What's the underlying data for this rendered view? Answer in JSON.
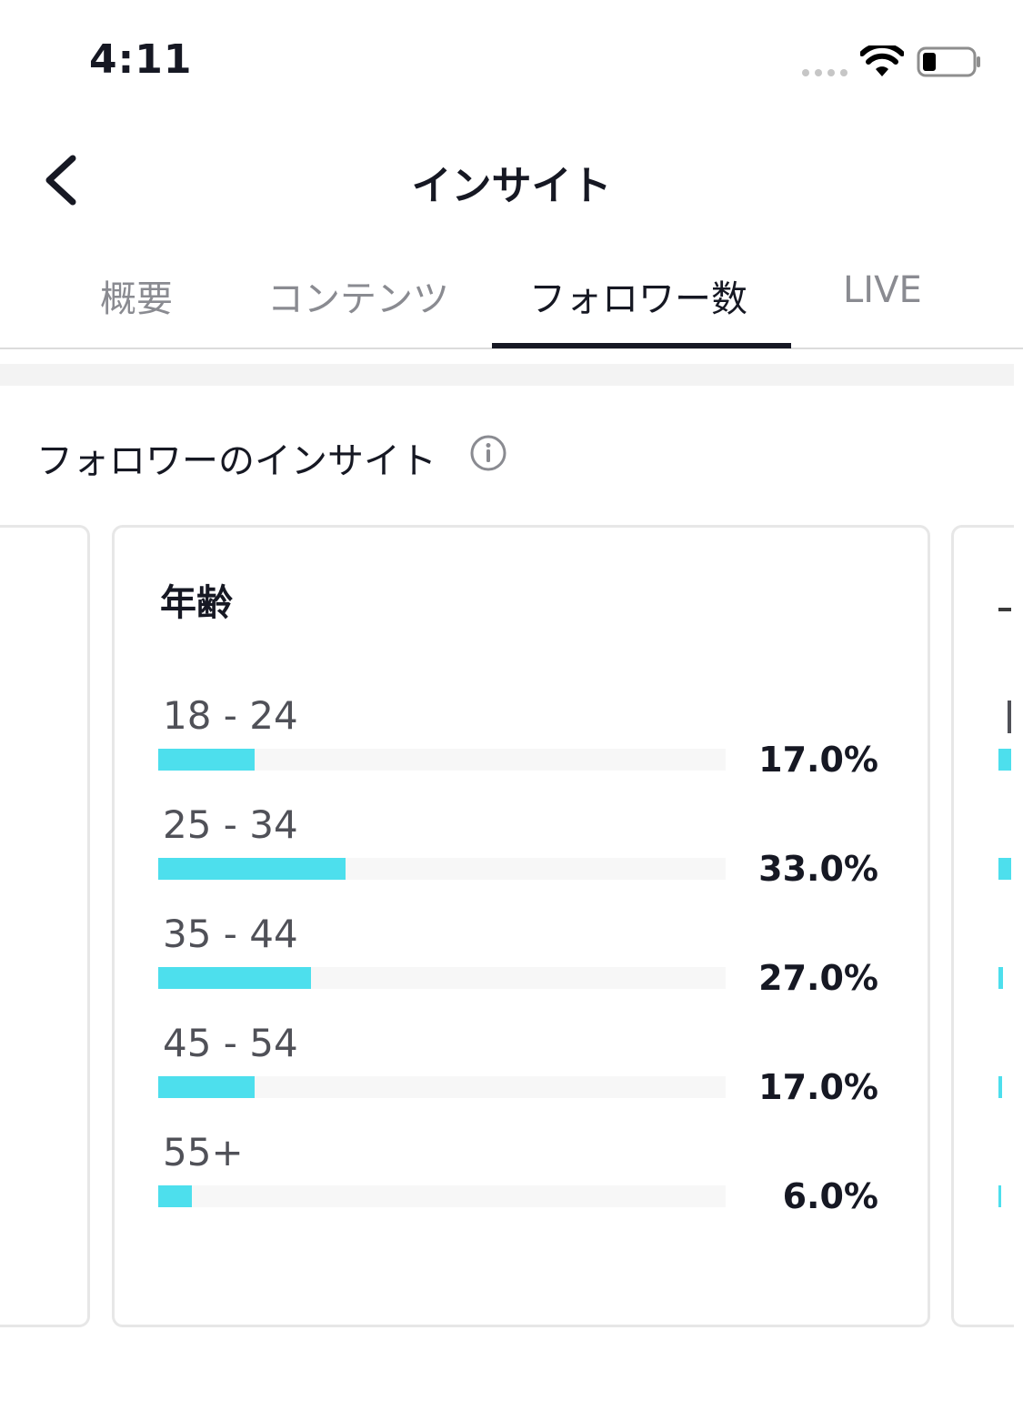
{
  "status_bar": {
    "time": "4:11"
  },
  "nav": {
    "title": "インサイト"
  },
  "tabs": [
    {
      "label": "概要",
      "active": false
    },
    {
      "label": "コンテンツ",
      "active": false
    },
    {
      "label": "フォロワー数",
      "active": true
    },
    {
      "label": "LIVE",
      "active": false
    }
  ],
  "section": {
    "title": "フォロワーのインサイト"
  },
  "age_card": {
    "title": "年齢",
    "rows": [
      {
        "label": "18 - 24",
        "percent": "17.0%",
        "fraction": 0.17
      },
      {
        "label": "25 - 34",
        "percent": "33.0%",
        "fraction": 0.33
      },
      {
        "label": "35 - 44",
        "percent": "27.0%",
        "fraction": 0.27
      },
      {
        "label": "45 - 54",
        "percent": "17.0%",
        "fraction": 0.17
      },
      {
        "label": "55+",
        "percent": "6.0%",
        "fraction": 0.06
      }
    ]
  },
  "colors": {
    "bar": "#4ddfed",
    "track": "#f7f7f7",
    "text": "#161823",
    "muted": "#8a8b91"
  }
}
